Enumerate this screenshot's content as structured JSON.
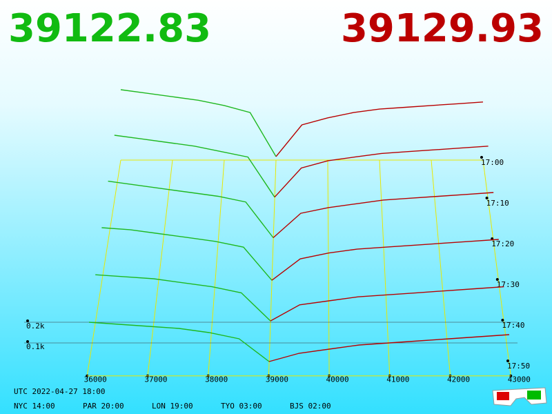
{
  "chart_data": {
    "type": "depth3d",
    "bid_label": "39122.83",
    "ask_label": "39129.93",
    "bid_color": "#1fb81f",
    "ask_color": "#b80000",
    "xticks": [
      36000,
      37000,
      38000,
      39000,
      40000,
      41000,
      42000,
      43000
    ],
    "xlim": [
      36000,
      43000
    ],
    "zticks": [
      {
        "value": 0.1,
        "label": "0.1k"
      },
      {
        "value": 0.2,
        "label": "0.2k"
      }
    ],
    "bid_prices": [
      36000,
      36500,
      37000,
      37500,
      38000,
      38500,
      39000
    ],
    "ask_prices": [
      39000,
      39500,
      40000,
      40500,
      41000,
      41500,
      42000,
      42500,
      43000
    ],
    "frames": [
      {
        "time": "17:00",
        "bids": [
          0.4,
          0.38,
          0.36,
          0.34,
          0.31,
          0.27,
          0.02
        ],
        "asks": [
          0.02,
          0.2,
          0.24,
          0.27,
          0.29,
          0.3,
          0.31,
          0.32,
          0.33
        ]
      },
      {
        "time": "17:10",
        "bids": [
          0.36,
          0.34,
          0.32,
          0.3,
          0.27,
          0.24,
          0.02
        ],
        "asks": [
          0.02,
          0.18,
          0.22,
          0.24,
          0.26,
          0.27,
          0.28,
          0.29,
          0.3
        ]
      },
      {
        "time": "17:20",
        "bids": [
          0.32,
          0.3,
          0.28,
          0.26,
          0.24,
          0.21,
          0.02
        ],
        "asks": [
          0.02,
          0.15,
          0.18,
          0.2,
          0.22,
          0.23,
          0.24,
          0.25,
          0.26
        ]
      },
      {
        "time": "17:30",
        "bids": [
          0.28,
          0.27,
          0.25,
          0.23,
          0.21,
          0.18,
          0.01
        ],
        "asks": [
          0.01,
          0.12,
          0.15,
          0.17,
          0.18,
          0.19,
          0.2,
          0.21,
          0.22
        ]
      },
      {
        "time": "17:40",
        "bids": [
          0.24,
          0.23,
          0.22,
          0.2,
          0.18,
          0.15,
          0.01
        ],
        "asks": [
          0.01,
          0.09,
          0.11,
          0.13,
          0.14,
          0.15,
          0.16,
          0.17,
          0.18
        ]
      },
      {
        "time": "17:50",
        "bids": [
          0.2,
          0.19,
          0.18,
          0.17,
          0.15,
          0.12,
          0.01
        ],
        "asks": [
          0.01,
          0.05,
          0.07,
          0.09,
          0.1,
          0.11,
          0.12,
          0.13,
          0.14
        ]
      }
    ]
  },
  "footer": {
    "utc": "UTC 2022-04-27 18:00",
    "cities": [
      "NYC 14:00",
      "PAR 20:00",
      "LON 19:00",
      "TYO 03:00",
      "BJS 02:00"
    ]
  }
}
